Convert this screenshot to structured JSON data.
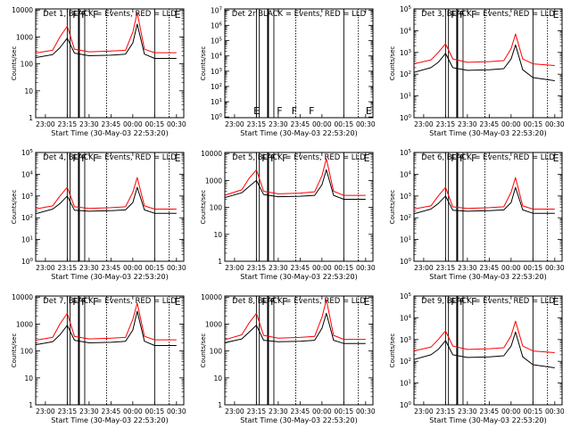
{
  "chart_data": [
    {
      "type": "line",
      "panel": 1,
      "title": "Det 1, BLACK = Events, RED = LLD",
      "xlabel": "Start Time (30-May-03 22:53:20)",
      "ylabel": "Counts/sec",
      "xlim": [
        "22:53:20",
        "00:35:00"
      ],
      "ylim": [
        1,
        11000
      ],
      "log_y": true,
      "x_ticks": [
        "23:00",
        "23:15",
        "23:30",
        "23:45",
        "00:00",
        "00:15",
        "00:30"
      ],
      "y_ticks": [
        {
          "v": 1,
          "label": "1"
        },
        {
          "v": 10,
          "label": "10"
        },
        {
          "v": 100,
          "label": "100"
        },
        {
          "v": 1000,
          "label": "1000"
        },
        {
          "v": 10000,
          "label": "10000"
        }
      ],
      "flags": [
        "F",
        "F",
        "F",
        "E"
      ],
      "series": [
        {
          "name": "BLACK = Events",
          "color": "#000000",
          "x": [
            "22:53",
            "23:05",
            "23:10",
            "23:15",
            "23:20",
            "23:30",
            "23:45",
            "23:55",
            "00:00",
            "00:03",
            "00:08",
            "00:15",
            "00:30"
          ],
          "y": [
            170,
            220,
            400,
            900,
            250,
            200,
            210,
            230,
            600,
            3000,
            230,
            160,
            160
          ]
        },
        {
          "name": "RED = LLD",
          "color": "#ff0000",
          "x": [
            "22:53",
            "23:05",
            "23:10",
            "23:15",
            "23:20",
            "23:30",
            "23:45",
            "23:55",
            "00:00",
            "00:03",
            "00:08",
            "00:15",
            "00:30"
          ],
          "y": [
            250,
            320,
            1000,
            2500,
            350,
            280,
            300,
            320,
            1500,
            8000,
            350,
            260,
            260
          ]
        }
      ]
    },
    {
      "type": "line",
      "panel": 2,
      "title": "Det 2r BLACK = Events, RED = LLD",
      "xlabel": "Start Time (30-May-03 22:53:20)",
      "ylabel": "Counts/sec",
      "xlim": [
        "22:53:20",
        "00:35:00"
      ],
      "ylim": [
        0.9,
        12000000
      ],
      "log_y": true,
      "x_ticks": [
        "23:00",
        "23:15",
        "23:30",
        "23:45",
        "00:00",
        "00:15",
        "00:30"
      ],
      "y_ticks": [
        {
          "v": 1,
          "label": "10^0"
        },
        {
          "v": 10,
          "label": "10^1"
        },
        {
          "v": 100,
          "label": "10^2"
        },
        {
          "v": 1000,
          "label": "10^3"
        },
        {
          "v": 10000,
          "label": "10^4"
        },
        {
          "v": 100000,
          "label": "10^5"
        },
        {
          "v": 1000000,
          "label": "10^6"
        },
        {
          "v": 10000000,
          "label": "10^7"
        }
      ],
      "flags": [
        "E",
        "F",
        "F",
        "F",
        "E"
      ],
      "series": []
    },
    {
      "type": "line",
      "panel": 3,
      "title": "Det 3, BLACK = Events, RED = LLD",
      "xlabel": "Start Time (30-May-03 22:53:20)",
      "ylabel": "Counts/sec",
      "xlim": [
        "22:53:20",
        "00:35:00"
      ],
      "ylim": [
        1,
        100000
      ],
      "log_y": true,
      "x_ticks": [
        "23:00",
        "23:15",
        "23:30",
        "23:45",
        "00:00",
        "00:15",
        "00:30"
      ],
      "y_ticks": [
        {
          "v": 1,
          "label": "10^0"
        },
        {
          "v": 10,
          "label": "10^1"
        },
        {
          "v": 100,
          "label": "10^2"
        },
        {
          "v": 1000,
          "label": "10^3"
        },
        {
          "v": 10000,
          "label": "10^4"
        },
        {
          "v": 100000,
          "label": "10^5"
        }
      ],
      "flags": [
        "F",
        "F",
        "F",
        "E"
      ],
      "series": [
        {
          "name": "BLACK = Events",
          "color": "#000000",
          "x": [
            "22:53",
            "23:05",
            "23:10",
            "23:15",
            "23:20",
            "23:30",
            "23:45",
            "23:55",
            "00:00",
            "00:03",
            "00:08",
            "00:15",
            "00:30"
          ],
          "y": [
            120,
            200,
            350,
            900,
            200,
            150,
            160,
            180,
            500,
            2200,
            160,
            70,
            50
          ]
        },
        {
          "name": "RED = LLD",
          "color": "#ff0000",
          "x": [
            "22:53",
            "23:05",
            "23:10",
            "23:15",
            "23:20",
            "23:30",
            "23:45",
            "23:55",
            "00:00",
            "00:03",
            "00:08",
            "00:15",
            "00:30"
          ],
          "y": [
            300,
            450,
            1000,
            2500,
            500,
            350,
            380,
            420,
            1500,
            7000,
            500,
            300,
            250
          ]
        }
      ]
    },
    {
      "type": "line",
      "panel": 4,
      "title": "Det 4, BLACK = Events, RED = LLD",
      "xlabel": "Start Time (30-May-03 22:53:20)",
      "ylabel": "Counts/sec",
      "xlim": [
        "22:53:20",
        "00:35:00"
      ],
      "ylim": [
        1,
        100000
      ],
      "log_y": true,
      "x_ticks": [
        "23:00",
        "23:15",
        "23:30",
        "23:45",
        "00:00",
        "00:15",
        "00:30"
      ],
      "y_ticks": [
        {
          "v": 1,
          "label": "10^0"
        },
        {
          "v": 10,
          "label": "10^1"
        },
        {
          "v": 100,
          "label": "10^2"
        },
        {
          "v": 1000,
          "label": "10^3"
        },
        {
          "v": 10000,
          "label": "10^4"
        },
        {
          "v": 100000,
          "label": "10^5"
        }
      ],
      "flags": [
        "F",
        "F",
        "F",
        "E"
      ],
      "series": [
        {
          "name": "BLACK = Events",
          "color": "#000000",
          "x": [
            "22:53",
            "23:05",
            "23:10",
            "23:15",
            "23:20",
            "23:30",
            "23:45",
            "23:55",
            "00:00",
            "00:03",
            "00:08",
            "00:15",
            "00:30"
          ],
          "y": [
            150,
            250,
            450,
            1000,
            220,
            200,
            210,
            230,
            500,
            2500,
            230,
            160,
            160
          ]
        },
        {
          "name": "RED = LLD",
          "color": "#ff0000",
          "x": [
            "22:53",
            "23:05",
            "23:10",
            "23:15",
            "23:20",
            "23:30",
            "23:45",
            "23:55",
            "00:00",
            "00:03",
            "00:08",
            "00:15",
            "00:30"
          ],
          "y": [
            250,
            350,
            1000,
            2500,
            320,
            270,
            290,
            320,
            1500,
            7000,
            350,
            250,
            250
          ]
        }
      ]
    },
    {
      "type": "line",
      "panel": 5,
      "title": "Det 5, BLACK = Events, RED = LLD",
      "xlabel": "Start Time (30-May-03 22:53:20)",
      "ylabel": "Counts/sec",
      "xlim": [
        "22:53:20",
        "00:35:00"
      ],
      "ylim": [
        1,
        11000
      ],
      "log_y": true,
      "x_ticks": [
        "23:00",
        "23:15",
        "23:30",
        "23:45",
        "00:00",
        "00:15",
        "00:30"
      ],
      "y_ticks": [
        {
          "v": 1,
          "label": "1"
        },
        {
          "v": 10,
          "label": "10"
        },
        {
          "v": 100,
          "label": "100"
        },
        {
          "v": 1000,
          "label": "1000"
        },
        {
          "v": 10000,
          "label": "10000"
        }
      ],
      "flags": [
        "F",
        "F",
        "F",
        "E"
      ],
      "series": [
        {
          "name": "BLACK = Events",
          "color": "#000000",
          "x": [
            "22:53",
            "23:05",
            "23:10",
            "23:15",
            "23:20",
            "23:30",
            "23:45",
            "23:55",
            "00:00",
            "00:03",
            "00:08",
            "00:15",
            "00:30"
          ],
          "y": [
            230,
            350,
            600,
            1000,
            300,
            250,
            260,
            280,
            700,
            2500,
            280,
            200,
            200
          ]
        },
        {
          "name": "RED = LLD",
          "color": "#ff0000",
          "x": [
            "22:53",
            "23:05",
            "23:10",
            "23:15",
            "23:20",
            "23:30",
            "23:45",
            "23:55",
            "00:00",
            "00:03",
            "00:08",
            "00:15",
            "00:30"
          ],
          "y": [
            280,
            450,
            1200,
            2500,
            400,
            320,
            340,
            380,
            1500,
            6500,
            400,
            280,
            280
          ]
        }
      ]
    },
    {
      "type": "line",
      "panel": 6,
      "title": "Det 6, BLACK = Events, RED = LLD",
      "xlabel": "Start Time (30-May-03 22:53:20)",
      "ylabel": "Counts/sec",
      "xlim": [
        "22:53:20",
        "00:35:00"
      ],
      "ylim": [
        1,
        100000
      ],
      "log_y": true,
      "x_ticks": [
        "23:00",
        "23:15",
        "23:30",
        "23:45",
        "00:00",
        "00:15",
        "00:30"
      ],
      "y_ticks": [
        {
          "v": 1,
          "label": "10^0"
        },
        {
          "v": 10,
          "label": "10^1"
        },
        {
          "v": 100,
          "label": "10^2"
        },
        {
          "v": 1000,
          "label": "10^3"
        },
        {
          "v": 10000,
          "label": "10^4"
        },
        {
          "v": 100000,
          "label": "10^5"
        }
      ],
      "flags": [
        "F",
        "F",
        "F",
        "E"
      ],
      "series": [
        {
          "name": "BLACK = Events",
          "color": "#000000",
          "x": [
            "22:53",
            "23:05",
            "23:10",
            "23:15",
            "23:20",
            "23:30",
            "23:45",
            "23:55",
            "00:00",
            "00:03",
            "00:08",
            "00:15",
            "00:30"
          ],
          "y": [
            150,
            250,
            450,
            1000,
            220,
            200,
            210,
            230,
            500,
            2500,
            230,
            160,
            160
          ]
        },
        {
          "name": "RED = LLD",
          "color": "#ff0000",
          "x": [
            "22:53",
            "23:05",
            "23:10",
            "23:15",
            "23:20",
            "23:30",
            "23:45",
            "23:55",
            "00:00",
            "00:03",
            "00:08",
            "00:15",
            "00:30"
          ],
          "y": [
            250,
            350,
            1000,
            2500,
            320,
            270,
            290,
            320,
            1500,
            7000,
            350,
            250,
            250
          ]
        }
      ]
    },
    {
      "type": "line",
      "panel": 7,
      "title": "Det 7, BLACK = Events, RED = LLD",
      "xlabel": "Start Time (30-May-03 22:53:20)",
      "ylabel": "Counts/sec",
      "xlim": [
        "22:53:20",
        "00:35:00"
      ],
      "ylim": [
        1,
        11000
      ],
      "log_y": true,
      "x_ticks": [
        "23:00",
        "23:15",
        "23:30",
        "23:45",
        "00:00",
        "00:15",
        "00:30"
      ],
      "y_ticks": [
        {
          "v": 1,
          "label": "1"
        },
        {
          "v": 10,
          "label": "10"
        },
        {
          "v": 100,
          "label": "100"
        },
        {
          "v": 1000,
          "label": "1000"
        },
        {
          "v": 10000,
          "label": "10000"
        }
      ],
      "flags": [
        "F",
        "F",
        "F",
        "E"
      ],
      "series": [
        {
          "name": "BLACK = Events",
          "color": "#000000",
          "x": [
            "22:53",
            "23:05",
            "23:10",
            "23:15",
            "23:20",
            "23:30",
            "23:45",
            "23:55",
            "00:00",
            "00:03",
            "00:08",
            "00:15",
            "00:30"
          ],
          "y": [
            170,
            220,
            400,
            900,
            250,
            200,
            210,
            230,
            600,
            3000,
            230,
            160,
            160
          ]
        },
        {
          "name": "RED = LLD",
          "color": "#ff0000",
          "x": [
            "22:53",
            "23:05",
            "23:10",
            "23:15",
            "23:20",
            "23:30",
            "23:45",
            "23:55",
            "00:00",
            "00:03",
            "00:08",
            "00:15",
            "00:30"
          ],
          "y": [
            250,
            320,
            1000,
            2500,
            350,
            280,
            300,
            320,
            1500,
            6000,
            350,
            260,
            260
          ]
        }
      ]
    },
    {
      "type": "line",
      "panel": 8,
      "title": "Det 8, BLACK = Events, RED = LLD",
      "xlabel": "Start Time (30-May-03 22:53:20)",
      "ylabel": "Counts/sec",
      "xlim": [
        "22:53:20",
        "00:35:00"
      ],
      "ylim": [
        1,
        11000
      ],
      "log_y": true,
      "x_ticks": [
        "23:00",
        "23:15",
        "23:30",
        "23:45",
        "00:00",
        "00:15",
        "00:30"
      ],
      "y_ticks": [
        {
          "v": 1,
          "label": "1"
        },
        {
          "v": 10,
          "label": "10"
        },
        {
          "v": 100,
          "label": "100"
        },
        {
          "v": 1000,
          "label": "1000"
        },
        {
          "v": 10000,
          "label": "10000"
        }
      ],
      "flags": [
        "F",
        "F",
        "F",
        "E"
      ],
      "series": [
        {
          "name": "BLACK = Events",
          "color": "#000000",
          "x": [
            "22:53",
            "23:05",
            "23:10",
            "23:15",
            "23:20",
            "23:30",
            "23:45",
            "23:55",
            "00:00",
            "00:03",
            "00:08",
            "00:15",
            "00:30"
          ],
          "y": [
            200,
            280,
            500,
            900,
            250,
            220,
            230,
            250,
            700,
            2500,
            250,
            190,
            190
          ]
        },
        {
          "name": "RED = LLD",
          "color": "#ff0000",
          "x": [
            "22:53",
            "23:05",
            "23:10",
            "23:15",
            "23:20",
            "23:30",
            "23:45",
            "23:55",
            "00:00",
            "00:03",
            "00:08",
            "00:15",
            "00:30"
          ],
          "y": [
            260,
            400,
            1100,
            2500,
            380,
            300,
            320,
            350,
            1800,
            8000,
            380,
            270,
            270
          ]
        }
      ]
    },
    {
      "type": "line",
      "panel": 9,
      "title": "Det 9, BLACK = Events, RED = LLD",
      "xlabel": "Start Time (30-May-03 22:53:20)",
      "ylabel": "Counts/sec",
      "xlim": [
        "22:53:20",
        "00:35:00"
      ],
      "ylim": [
        1,
        100000
      ],
      "log_y": true,
      "x_ticks": [
        "23:00",
        "23:15",
        "23:30",
        "23:45",
        "00:00",
        "00:15",
        "00:30"
      ],
      "y_ticks": [
        {
          "v": 1,
          "label": "10^0"
        },
        {
          "v": 10,
          "label": "10^1"
        },
        {
          "v": 100,
          "label": "10^2"
        },
        {
          "v": 1000,
          "label": "10^3"
        },
        {
          "v": 10000,
          "label": "10^4"
        },
        {
          "v": 100000,
          "label": "10^5"
        }
      ],
      "flags": [
        "F",
        "F",
        "F",
        "E"
      ],
      "series": [
        {
          "name": "BLACK = Events",
          "color": "#000000",
          "x": [
            "22:53",
            "23:05",
            "23:10",
            "23:15",
            "23:20",
            "23:30",
            "23:45",
            "23:55",
            "00:00",
            "00:03",
            "00:08",
            "00:15",
            "00:30"
          ],
          "y": [
            120,
            200,
            350,
            900,
            200,
            150,
            160,
            180,
            500,
            2200,
            160,
            70,
            50
          ]
        },
        {
          "name": "RED = LLD",
          "color": "#ff0000",
          "x": [
            "22:53",
            "23:05",
            "23:10",
            "23:15",
            "23:20",
            "23:30",
            "23:45",
            "23:55",
            "00:00",
            "00:03",
            "00:08",
            "00:15",
            "00:30"
          ],
          "y": [
            300,
            450,
            1000,
            2500,
            500,
            350,
            380,
            420,
            1500,
            7000,
            500,
            300,
            250
          ]
        }
      ]
    }
  ]
}
